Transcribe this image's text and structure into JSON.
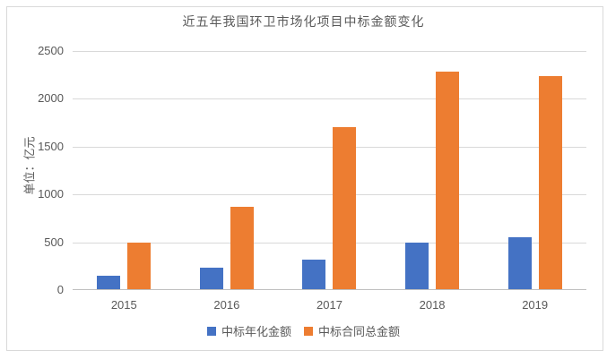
{
  "chart_data": {
    "type": "bar",
    "title": "近五年我国环卫市场化项目中标金额变化",
    "ylabel": "单位：亿元",
    "xlabel": "",
    "categories": [
      "2015",
      "2016",
      "2017",
      "2018",
      "2019"
    ],
    "series": [
      {
        "name": "中标年化金额",
        "color": "#4472C4",
        "values": [
          140,
          230,
          310,
          490,
          545
        ]
      },
      {
        "name": "中标合同总金额",
        "color": "#ED7D31",
        "values": [
          490,
          865,
          1700,
          2280,
          2240
        ]
      }
    ],
    "ylim": [
      0,
      2500
    ],
    "yticks": [
      0,
      500,
      1000,
      1500,
      2000,
      2500
    ],
    "grid": true,
    "legend_position": "bottom"
  },
  "colors": {
    "text": "#595959",
    "gridline": "#d9d9d9",
    "axis_line": "#bfbfbf",
    "frame_border": "#d9d9d9",
    "background": "#ffffff"
  }
}
